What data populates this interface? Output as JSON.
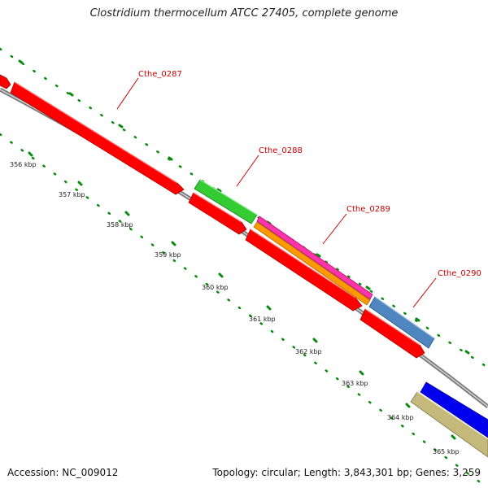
{
  "title": "Clostridium thermocellum ATCC 27405, complete genome",
  "footer": {
    "accession": "Accession: NC_009012",
    "stats": "Topology: circular; Length: 3,843,301 bp; Genes: 3,259"
  },
  "kbp_labels": [
    "356 kbp",
    "357 kbp",
    "358 kbp",
    "359 kbp",
    "360 kbp",
    "361 kbp",
    "362 kbp",
    "363 kbp",
    "364 kbp",
    "365 kbp"
  ],
  "gene_labels": [
    "Cthe_0287",
    "Cthe_0288",
    "Cthe_0289",
    "Cthe_0290"
  ],
  "colors": {
    "forward_cds": "#ff0000",
    "gene_0288": "#33cc33",
    "gene_0289_a": "#ff33aa",
    "gene_0289_b": "#ff9900",
    "gene_0290": "#4f86c0",
    "blue_feature": "#0000ee",
    "khaki_feature": "#c4b87a",
    "backbone": "#999999",
    "ticks": "#008000",
    "label": "#cc0000"
  }
}
